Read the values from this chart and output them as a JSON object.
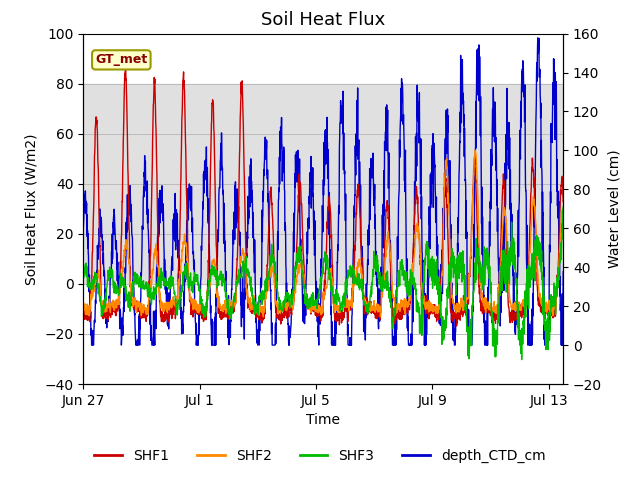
{
  "title": "Soil Heat Flux",
  "xlabel": "Time",
  "ylabel_left": "Soil Heat Flux (W/m2)",
  "ylabel_right": "Water Level (cm)",
  "ylim_left": [
    -40,
    100
  ],
  "ylim_right": [
    -20,
    160
  ],
  "yticks_left": [
    -40,
    -20,
    0,
    20,
    40,
    60,
    80,
    100
  ],
  "yticks_right": [
    -20,
    0,
    20,
    40,
    60,
    80,
    100,
    120,
    140,
    160
  ],
  "xtick_labels": [
    "Jun 27",
    "Jul 1",
    "Jul 5",
    "Jul 9",
    "Jul 13"
  ],
  "xtick_positions": [
    0,
    4,
    8,
    12,
    16
  ],
  "colors": {
    "SHF1": "#cc0000",
    "SHF2": "#ff8800",
    "SHF3": "#00bb00",
    "depth_CTD_cm": "#0000cc"
  },
  "legend_labels": [
    "SHF1",
    "SHF2",
    "SHF3",
    "depth_CTD_cm"
  ],
  "gt_met_label": "GT_met",
  "gt_met_bg": "#ffffcc",
  "gt_met_border": "#999900",
  "gt_met_text_color": "#880000",
  "shaded_region_ymin": 0,
  "shaded_region_ymax": 80,
  "shaded_color": "#e0e0e0",
  "background_color": "#ffffff",
  "grid_color": "#bbbbbb",
  "title_fontsize": 13,
  "axis_label_fontsize": 10,
  "legend_fontsize": 10,
  "total_days": 16.5
}
